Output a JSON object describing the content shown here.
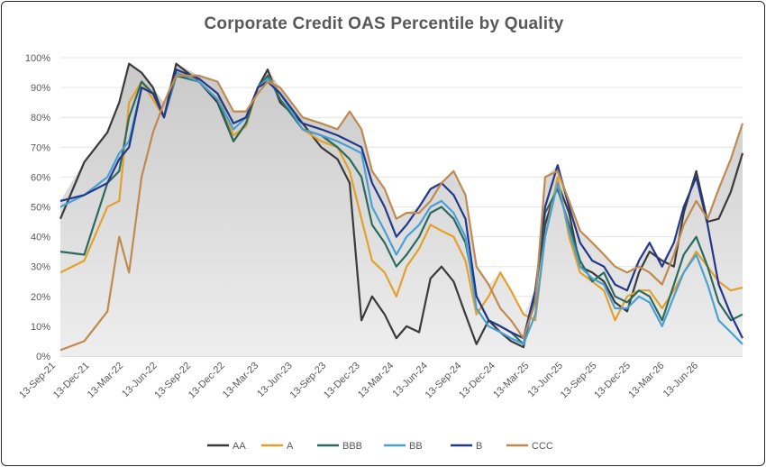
{
  "chart_data": {
    "type": "line",
    "title": "Corporate Credit OAS Percentile by Quality",
    "ylim": [
      0,
      100
    ],
    "y_ticks": [
      "0%",
      "10%",
      "20%",
      "30%",
      "40%",
      "50%",
      "60%",
      "70%",
      "80%",
      "90%",
      "100%"
    ],
    "x_tick_labels": [
      "13-Sep-21",
      "13-Dec-21",
      "13-Mar-22",
      "13-Jun-22",
      "13-Sep-22",
      "13-Dec-22",
      "13-Mar-23",
      "13-Jun-23",
      "13-Sep-23",
      "13-Dec-23",
      "13-Mar-24",
      "13-Jun-24",
      "13-Sep-24",
      "13-Dec-24",
      "13-Mar-25",
      "13-Jun-25",
      "13-Sep-25",
      "13-Dec-25",
      "13-Mar-26",
      "13-Jun-26"
    ],
    "legend_position": "bottom",
    "shaded_area": "max of all series",
    "x": [
      "2021-09-13",
      "2021-11-15",
      "2022-01-15",
      "2022-02-15",
      "2022-03-13",
      "2022-04-15",
      "2022-05-15",
      "2022-06-13",
      "2022-07-15",
      "2022-09-13",
      "2022-11-01",
      "2022-12-13",
      "2023-01-15",
      "2023-02-15",
      "2023-03-13",
      "2023-04-15",
      "2023-06-13",
      "2023-08-01",
      "2023-09-13",
      "2023-10-15",
      "2023-11-15",
      "2023-12-13",
      "2024-01-15",
      "2024-02-15",
      "2024-03-13",
      "2024-04-15",
      "2024-05-15",
      "2024-06-13",
      "2024-07-15",
      "2024-08-15",
      "2024-09-13",
      "2024-10-15",
      "2024-11-15",
      "2024-12-13",
      "2025-01-15",
      "2025-02-15",
      "2025-03-13",
      "2025-04-15",
      "2025-05-15",
      "2025-06-13",
      "2025-07-15",
      "2025-08-15",
      "2025-09-13",
      "2025-10-15",
      "2025-11-15",
      "2025-12-13",
      "2026-01-15",
      "2026-02-15",
      "2026-03-13",
      "2026-04-15",
      "2026-05-15",
      "2026-06-13",
      "2026-07-15",
      "2026-08-15"
    ],
    "series": [
      {
        "name": "AA",
        "color": "#3a3a3a",
        "values": [
          46,
          65,
          75,
          85,
          98,
          95,
          90,
          80,
          98,
          92,
          85,
          72,
          78,
          90,
          96,
          85,
          78,
          70,
          66,
          58,
          12,
          20,
          14,
          6,
          10,
          8,
          26,
          30,
          25,
          14,
          4,
          12,
          8,
          5,
          3,
          22,
          44,
          58,
          48,
          30,
          28,
          25,
          18,
          15,
          28,
          35,
          32,
          30,
          48,
          62,
          45,
          46,
          55,
          68
        ]
      },
      {
        "name": "A",
        "color": "#e3a02a",
        "values": [
          28,
          32,
          50,
          52,
          85,
          92,
          86,
          80,
          95,
          93,
          88,
          74,
          77,
          90,
          94,
          88,
          76,
          72,
          70,
          62,
          46,
          32,
          28,
          20,
          30,
          36,
          44,
          42,
          40,
          32,
          14,
          20,
          28,
          22,
          14,
          12,
          40,
          60,
          40,
          28,
          25,
          22,
          12,
          20,
          22,
          22,
          16,
          22,
          28,
          35,
          30,
          25,
          22,
          23
        ]
      },
      {
        "name": "BBB",
        "color": "#2a6b5e",
        "values": [
          35,
          34,
          58,
          62,
          80,
          92,
          88,
          80,
          94,
          92,
          86,
          72,
          78,
          90,
          94,
          86,
          76,
          74,
          70,
          66,
          60,
          44,
          38,
          30,
          34,
          40,
          48,
          50,
          46,
          38,
          20,
          12,
          10,
          8,
          4,
          20,
          48,
          56,
          44,
          32,
          25,
          28,
          20,
          18,
          22,
          20,
          12,
          24,
          34,
          40,
          30,
          18,
          12,
          14
        ]
      },
      {
        "name": "BB",
        "color": "#4aa0d4",
        "values": [
          50,
          54,
          60,
          68,
          72,
          90,
          88,
          80,
          95,
          92,
          86,
          76,
          80,
          90,
          93,
          88,
          76,
          74,
          72,
          70,
          68,
          50,
          42,
          34,
          40,
          44,
          50,
          52,
          48,
          40,
          16,
          10,
          8,
          6,
          4,
          14,
          40,
          58,
          42,
          30,
          26,
          24,
          16,
          16,
          20,
          18,
          10,
          20,
          28,
          34,
          24,
          12,
          8,
          4
        ]
      },
      {
        "name": "B",
        "color": "#23388a",
        "values": [
          52,
          54,
          58,
          66,
          70,
          90,
          88,
          80,
          96,
          93,
          88,
          78,
          80,
          90,
          92,
          88,
          78,
          76,
          74,
          72,
          70,
          58,
          50,
          40,
          44,
          50,
          56,
          58,
          54,
          46,
          20,
          12,
          10,
          8,
          6,
          22,
          50,
          64,
          50,
          38,
          32,
          30,
          24,
          22,
          32,
          38,
          30,
          38,
          50,
          60,
          44,
          24,
          14,
          6
        ]
      },
      {
        "name": "CCC",
        "color": "#c08a4e",
        "values": [
          2,
          5,
          15,
          40,
          28,
          60,
          75,
          85,
          94,
          94,
          92,
          82,
          82,
          88,
          92,
          90,
          80,
          78,
          76,
          82,
          76,
          62,
          56,
          46,
          48,
          48,
          52,
          58,
          62,
          54,
          30,
          24,
          16,
          12,
          6,
          18,
          60,
          62,
          52,
          42,
          38,
          34,
          30,
          28,
          30,
          28,
          24,
          34,
          44,
          52,
          46,
          56,
          66,
          78
        ]
      }
    ]
  }
}
